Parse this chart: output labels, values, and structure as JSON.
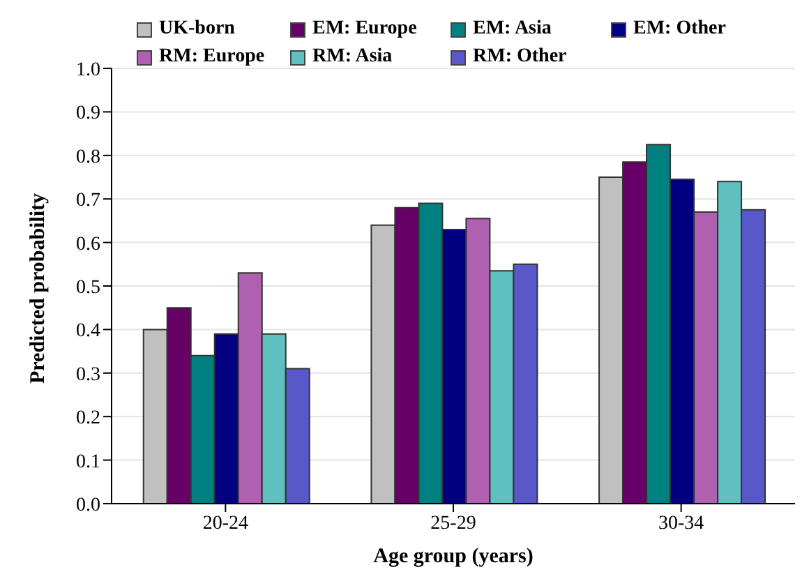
{
  "chart_data": {
    "type": "bar",
    "xlabel": "Age group (years)",
    "ylabel": "Predicted probability",
    "categories": [
      "20-24",
      "25-29",
      "30-34"
    ],
    "series": [
      {
        "name": "UK-born",
        "color": "#c0c0c0",
        "values": [
          0.4,
          0.64,
          0.75
        ]
      },
      {
        "name": "EM: Europe",
        "color": "#660066",
        "values": [
          0.45,
          0.68,
          0.785
        ]
      },
      {
        "name": "EM: Asia",
        "color": "#008080",
        "values": [
          0.34,
          0.69,
          0.825
        ]
      },
      {
        "name": "EM: Other",
        "color": "#000080",
        "values": [
          0.39,
          0.63,
          0.745
        ]
      },
      {
        "name": "RM: Europe",
        "color": "#b060b0",
        "values": [
          0.53,
          0.655,
          0.67
        ]
      },
      {
        "name": "RM: Asia",
        "color": "#60c0c0",
        "values": [
          0.39,
          0.535,
          0.74
        ]
      },
      {
        "name": "RM: Other",
        "color": "#5858c8",
        "values": [
          0.31,
          0.55,
          0.675
        ]
      }
    ],
    "ylim": [
      0,
      1
    ],
    "yticks": [
      {
        "value": 0,
        "label": "0.0"
      },
      {
        "value": 0.1,
        "label": "0.1"
      },
      {
        "value": 0.2,
        "label": "0.2"
      },
      {
        "value": 0.3,
        "label": "0.3"
      },
      {
        "value": 0.4,
        "label": "0.4"
      },
      {
        "value": 0.5,
        "label": "0.5"
      },
      {
        "value": 0.6,
        "label": "0.6"
      },
      {
        "value": 0.7,
        "label": "0.7"
      },
      {
        "value": 0.8,
        "label": "0.8"
      },
      {
        "value": 0.9,
        "label": "0.9"
      },
      {
        "value": 1,
        "label": "1.0"
      }
    ],
    "grid": "y",
    "legend": "top"
  }
}
